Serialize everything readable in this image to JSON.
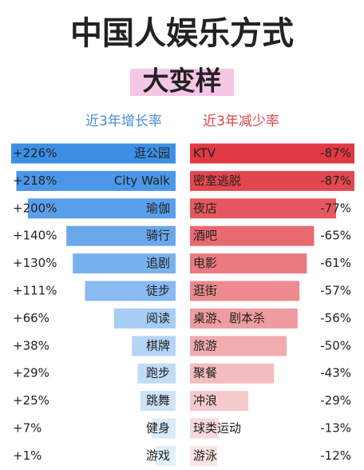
{
  "header": {
    "title": "中国人娱乐方式",
    "subtitle": "大变样"
  },
  "chart_data": [
    {
      "type": "bar",
      "orientation": "horizontal",
      "direction": "left",
      "title": "近3年增长率",
      "title_color": "#4a8fd8",
      "categories": [
        "逛公园",
        "City Walk",
        "瑜伽",
        "骑行",
        "追剧",
        "徒步",
        "阅读",
        "棋牌",
        "跑步",
        "跳舞",
        "健身",
        "游戏"
      ],
      "values": [
        226,
        218,
        200,
        140,
        130,
        111,
        66,
        38,
        29,
        25,
        7,
        1
      ],
      "value_labels": [
        "+226%",
        "+218%",
        "+200%",
        "+140%",
        "+130%",
        "+111%",
        "+66%",
        "+38%",
        "+29%",
        "+25%",
        "+7%",
        "+1%"
      ],
      "colors": [
        "#3d8fe6",
        "#4b96e8",
        "#5a9fea",
        "#6aa8ec",
        "#79b1ee",
        "#89baf0",
        "#a6cdf4",
        "#b4d5f5",
        "#c1dcf6",
        "#cde3f7",
        "#d9eaf8",
        "#e3effa"
      ]
    },
    {
      "type": "bar",
      "orientation": "horizontal",
      "direction": "right",
      "title": "近3年减少率",
      "title_color": "#d9474c",
      "categories": [
        "KTV",
        "密室逃脱",
        "夜店",
        "酒吧",
        "电影",
        "逛街",
        "桌游、剧本杀",
        "旅游",
        "聚餐",
        "冲浪",
        "球类运动",
        "游泳"
      ],
      "values": [
        -87,
        -87,
        -77,
        -65,
        -61,
        -57,
        -56,
        -50,
        -43,
        -29,
        -13,
        -12
      ],
      "value_labels": [
        "-87%",
        "-87%",
        "-77%",
        "-65%",
        "-61%",
        "-57%",
        "-56%",
        "-50%",
        "-43%",
        "-29%",
        "-13%",
        "-12%"
      ],
      "colors": [
        "#e03a44",
        "#e3474f",
        "#e6585f",
        "#e86a70",
        "#ea7a80",
        "#ec8a8f",
        "#ef9ca0",
        "#f1acb0",
        "#f3bcbf",
        "#f5cacc",
        "#f8d8da",
        "#fae4e5"
      ]
    }
  ]
}
